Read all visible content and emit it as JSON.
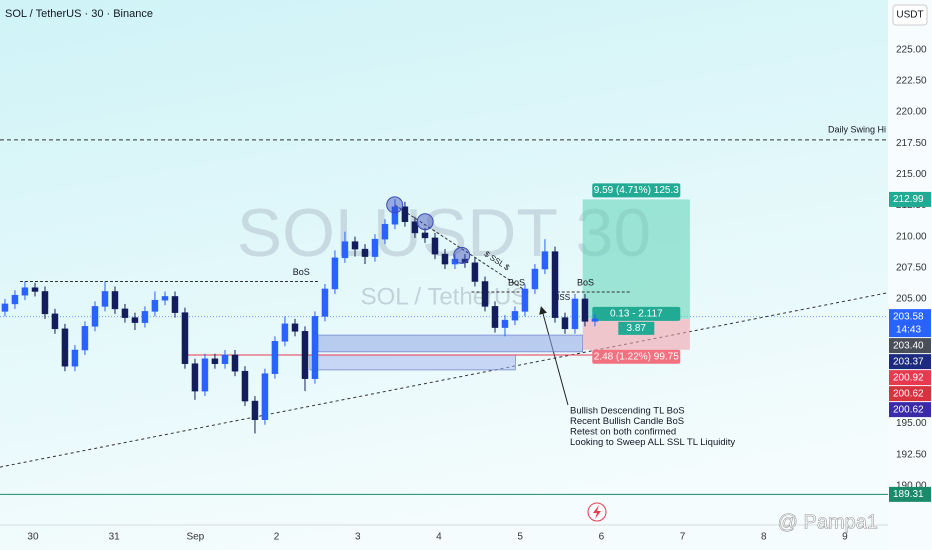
{
  "chart_data": {
    "type": "candlestick",
    "title": "SOL / TetherUS · 30 · Binance",
    "currency": "USDT",
    "watermark": [
      "SOLUSDT 30",
      "SOL / TetherUS"
    ],
    "credit": "@ Pampa1",
    "up_color": "#2962ff",
    "down_color": "#131d5c",
    "grid": false,
    "xlim": [
      -0.406,
      10.53
    ],
    "xticks": [
      {
        "value": 0,
        "label": "30"
      },
      {
        "value": 1,
        "label": "31"
      },
      {
        "value": 2,
        "label": "Sep"
      },
      {
        "value": 3,
        "label": "2"
      },
      {
        "value": 4,
        "label": "3"
      },
      {
        "value": 5,
        "label": "4"
      },
      {
        "value": 6,
        "label": "5"
      },
      {
        "value": 7,
        "label": "6"
      },
      {
        "value": 8,
        "label": "7"
      },
      {
        "value": 9,
        "label": "8"
      },
      {
        "value": 10,
        "label": "9"
      }
    ],
    "ylim": [
      186.85,
      229.0
    ],
    "yticks": [
      {
        "value": 190,
        "label": "190.00"
      },
      {
        "value": 192.5,
        "label": "192.50"
      },
      {
        "value": 195,
        "label": "195.00"
      },
      {
        "value": 197.5,
        "label": "197.50"
      },
      {
        "value": 200,
        "label": "200.00"
      },
      {
        "value": 202.5,
        "label": "202.50"
      },
      {
        "value": 205,
        "label": "205.00"
      },
      {
        "value": 207.5,
        "label": "207.50"
      },
      {
        "value": 210,
        "label": "210.00"
      },
      {
        "value": 212.5,
        "label": "212.50"
      },
      {
        "value": 215,
        "label": "215.00"
      },
      {
        "value": 217.5,
        "label": "217.50"
      },
      {
        "value": 220,
        "label": "220.00"
      },
      {
        "value": 222.5,
        "label": "222.50"
      },
      {
        "value": 225,
        "label": "225.00"
      }
    ],
    "x": [
      -0.345,
      -0.222,
      -0.099,
      0.025,
      0.148,
      0.271,
      0.394,
      0.517,
      0.64,
      0.764,
      0.887,
      1.01,
      1.133,
      1.256,
      1.379,
      1.502,
      1.626,
      1.749,
      1.872,
      1.995,
      2.118,
      2.241,
      2.365,
      2.488,
      2.611,
      2.734,
      2.857,
      2.98,
      3.103,
      3.227,
      3.35,
      3.473,
      3.596,
      3.719,
      3.842,
      3.966,
      4.089,
      4.212,
      4.335,
      4.458,
      4.581,
      4.704,
      4.828,
      4.951,
      5.074,
      5.197,
      5.32,
      5.443,
      5.567,
      5.69,
      5.813,
      5.936,
      6.059,
      6.182,
      6.305,
      6.429,
      6.552,
      6.675,
      6.798,
      6.921
    ],
    "open": [
      204.0,
      204.6,
      205.3,
      205.9,
      205.6,
      203.8,
      202.6,
      199.6,
      200.9,
      202.8,
      204.4,
      205.6,
      204.2,
      203.5,
      203.1,
      204.0,
      204.9,
      205.2,
      203.9,
      199.8,
      197.6,
      200.2,
      199.8,
      200.5,
      199.2,
      196.8,
      195.3,
      199.0,
      201.6,
      203.0,
      202.4,
      198.6,
      203.6,
      205.8,
      208.3,
      209.6,
      209.0,
      208.4,
      209.8,
      211.0,
      212.4,
      211.2,
      210.3,
      209.9,
      208.6,
      207.8,
      208.2,
      207.9,
      206.4,
      204.4,
      202.7,
      203.3,
      204.0,
      205.8,
      207.4,
      208.8,
      203.5,
      202.6,
      205.0,
      203.2
    ],
    "high": [
      205.0,
      205.7,
      206.4,
      206.3,
      206.0,
      204.2,
      203.0,
      201.3,
      203.2,
      204.8,
      206.4,
      206.0,
      204.6,
      203.9,
      204.4,
      205.6,
      205.6,
      205.6,
      204.3,
      200.2,
      200.6,
      200.6,
      200.9,
      200.9,
      199.6,
      197.2,
      199.4,
      202.0,
      203.6,
      203.4,
      202.8,
      204.0,
      206.2,
      208.9,
      210.4,
      210.0,
      209.4,
      210.2,
      211.4,
      213.0,
      212.8,
      211.6,
      210.7,
      210.3,
      209.0,
      208.6,
      208.6,
      208.3,
      206.8,
      204.8,
      203.7,
      204.4,
      206.2,
      207.8,
      209.8,
      209.2,
      203.9,
      205.4,
      205.4,
      203.8
    ],
    "low": [
      203.6,
      204.2,
      204.9,
      205.2,
      203.4,
      202.2,
      199.2,
      199.2,
      200.5,
      202.4,
      204.0,
      203.8,
      203.1,
      202.5,
      202.7,
      203.6,
      204.5,
      203.5,
      199.4,
      196.9,
      197.2,
      199.4,
      199.4,
      198.8,
      196.4,
      194.2,
      194.9,
      198.6,
      201.2,
      202.0,
      197.6,
      198.2,
      203.2,
      205.4,
      207.9,
      208.4,
      207.8,
      208.0,
      209.4,
      210.6,
      210.8,
      209.9,
      209.5,
      208.2,
      207.4,
      207.4,
      207.5,
      206.0,
      204.0,
      202.3,
      202.0,
      202.9,
      203.6,
      205.4,
      207.0,
      203.1,
      202.2,
      202.2,
      202.8,
      202.8
    ],
    "close": [
      204.6,
      205.3,
      205.9,
      205.6,
      203.8,
      202.6,
      199.6,
      200.9,
      202.8,
      204.4,
      205.6,
      204.2,
      203.5,
      203.1,
      204.0,
      204.9,
      205.2,
      203.9,
      199.8,
      197.6,
      200.2,
      199.8,
      200.5,
      199.2,
      196.8,
      195.3,
      199.0,
      201.6,
      203.0,
      202.4,
      198.6,
      203.6,
      205.8,
      208.3,
      209.6,
      209.0,
      208.4,
      209.8,
      211.0,
      212.4,
      211.2,
      210.3,
      209.9,
      208.6,
      207.8,
      208.2,
      207.9,
      206.4,
      204.4,
      202.7,
      203.3,
      204.0,
      205.8,
      207.4,
      208.8,
      203.5,
      202.6,
      205.0,
      203.2,
      203.4
    ],
    "swing_high": {
      "label": "Daily Swing Hi",
      "value": 217.77
    },
    "bos_lines": [
      {
        "label": "BoS",
        "x": [
          -0.16,
          3.53
        ],
        "value": 206.4,
        "label_x": 3.2
      },
      {
        "label": "BoS",
        "x": [
          5.4,
          6.1
        ],
        "value": 205.56,
        "label_x": 5.85
      },
      {
        "label": "BoS",
        "x": [
          6.45,
          7.35
        ],
        "value": 205.56,
        "label_x": 6.7
      }
    ],
    "mss_label": "MSS",
    "trendline": {
      "x": [
        -0.406,
        10.53
      ],
      "y": [
        191.5,
        205.5
      ]
    },
    "ssl_line": {
      "label": "$ SSL $",
      "x": [
        4.455,
        6.06
      ],
      "y": [
        212.55,
        205.7
      ]
    },
    "touches": {
      "x": [
        4.455,
        4.83,
        5.28
      ],
      "y": [
        212.55,
        211.2,
        208.5
      ]
    },
    "zones": [
      {
        "x": [
          3.51,
          6.77
        ],
        "y": [
          200.75,
          202.1
        ],
        "color": "#8fa8e8"
      },
      {
        "x": [
          3.41,
          5.94
        ],
        "y": [
          199.3,
          200.5
        ],
        "color": "#a9b8ee"
      }
    ],
    "red_level": {
      "x": [
        1.87,
        7.35
      ],
      "value": 200.5
    },
    "position": {
      "x": [
        6.77,
        8.09
      ],
      "target": 212.99,
      "entry": 203.4,
      "stop": 200.92,
      "target_label": "9.59 (4.71%) 125.3",
      "mid_label": "0.13 - 2.117",
      "ratio_label": "3.87",
      "stop_label": "2.48 (1.22%) 99.75"
    },
    "notes": [
      "Bullish Descending TL BoS",
      "Recent Bullish Candle BoS",
      "Retest on both confirmed",
      "Looking to Sweep ALL SSL TL Liquidity"
    ],
    "last_price_line": 203.58,
    "low_line": 189.31,
    "price_badges": [
      {
        "value": 212.99,
        "color": "#22ab94"
      },
      {
        "value": 203.58,
        "color": "#2962ff",
        "time": "14:43"
      },
      {
        "value": 203.4,
        "label": "203.40",
        "color": "#4a4e59"
      },
      {
        "value": 203.37,
        "color": "#1c2a80"
      },
      {
        "value": 200.92,
        "color": "#e8394f"
      },
      {
        "value": 200.62,
        "color": "#d9323f"
      },
      {
        "value": 200.62,
        "color": "#3b2aa8"
      },
      {
        "value": 189.31,
        "color": "#1a8a6a"
      }
    ]
  }
}
